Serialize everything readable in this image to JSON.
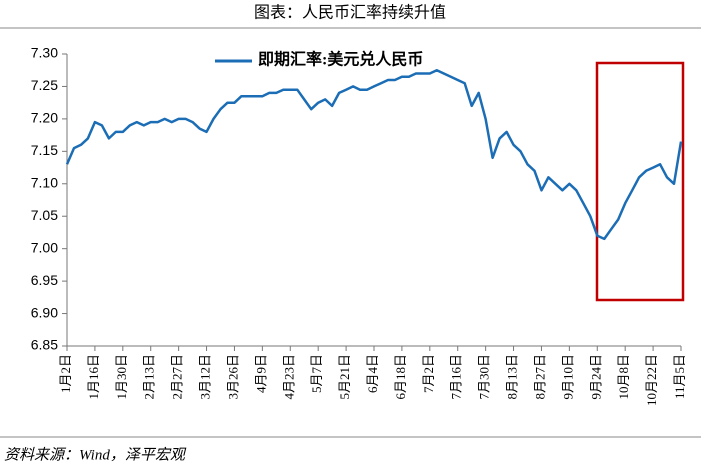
{
  "chart_data": {
    "type": "line",
    "title": "图表：人民币汇率持续升值",
    "source": "资料来源：Wind，泽平宏观",
    "categories": [
      "1月2日",
      null,
      null,
      null,
      "1月16日",
      null,
      null,
      null,
      "1月30日",
      null,
      null,
      null,
      "2月13日",
      null,
      null,
      null,
      "2月27日",
      null,
      null,
      null,
      "3月12日",
      null,
      null,
      null,
      "3月26日",
      null,
      null,
      null,
      "4月9日",
      null,
      null,
      null,
      "4月23日",
      null,
      null,
      null,
      "5月7日",
      null,
      null,
      null,
      "5月21日",
      null,
      null,
      null,
      "6月4日",
      null,
      null,
      null,
      "6月18日",
      null,
      null,
      null,
      "7月2日",
      null,
      null,
      null,
      "7月16日",
      null,
      null,
      null,
      "7月30日",
      null,
      null,
      null,
      "8月13日",
      null,
      null,
      null,
      "8月27日",
      null,
      null,
      null,
      "9月10日",
      null,
      null,
      null,
      "9月24日",
      null,
      null,
      null,
      "10月8日",
      null,
      null,
      null,
      "10月22日",
      null,
      null,
      null,
      "11月5日"
    ],
    "series": [
      {
        "name": "即期汇率:美元兑人民币",
        "color": "#1b6db5",
        "values": [
          7.13,
          7.155,
          7.16,
          7.17,
          7.195,
          7.19,
          7.17,
          7.18,
          7.18,
          7.19,
          7.195,
          7.19,
          7.195,
          7.195,
          7.2,
          7.195,
          7.2,
          7.2,
          7.195,
          7.185,
          7.18,
          7.2,
          7.215,
          7.225,
          7.225,
          7.235,
          7.235,
          7.235,
          7.235,
          7.24,
          7.24,
          7.245,
          7.245,
          7.245,
          7.23,
          7.215,
          7.225,
          7.23,
          7.22,
          7.24,
          7.245,
          7.25,
          7.245,
          7.245,
          7.25,
          7.255,
          7.26,
          7.26,
          7.265,
          7.265,
          7.27,
          7.27,
          7.27,
          7.275,
          7.27,
          7.265,
          7.26,
          7.255,
          7.22,
          7.24,
          7.2,
          7.14,
          7.17,
          7.18,
          7.16,
          7.15,
          7.13,
          7.12,
          7.09,
          7.11,
          7.1,
          7.09,
          7.1,
          7.09,
          7.07,
          7.05,
          7.02,
          7.015,
          7.03,
          7.045,
          7.07,
          7.09,
          7.11,
          7.12,
          7.125,
          7.13,
          7.11,
          7.1,
          7.165
        ]
      }
    ],
    "ylim": [
      6.85,
      7.3
    ],
    "yticks": [
      {
        "value": 6.85,
        "label": "6.85"
      },
      {
        "value": 6.9,
        "label": "6.90"
      },
      6.95,
      {
        "value": 7.0,
        "label": "7.00"
      },
      7.05,
      {
        "value": 7.1,
        "label": "7.10"
      },
      7.15,
      {
        "value": 7.2,
        "label": "7.20"
      },
      7.25,
      {
        "value": 7.3,
        "label": "7.30"
      }
    ],
    "grid": false
  }
}
